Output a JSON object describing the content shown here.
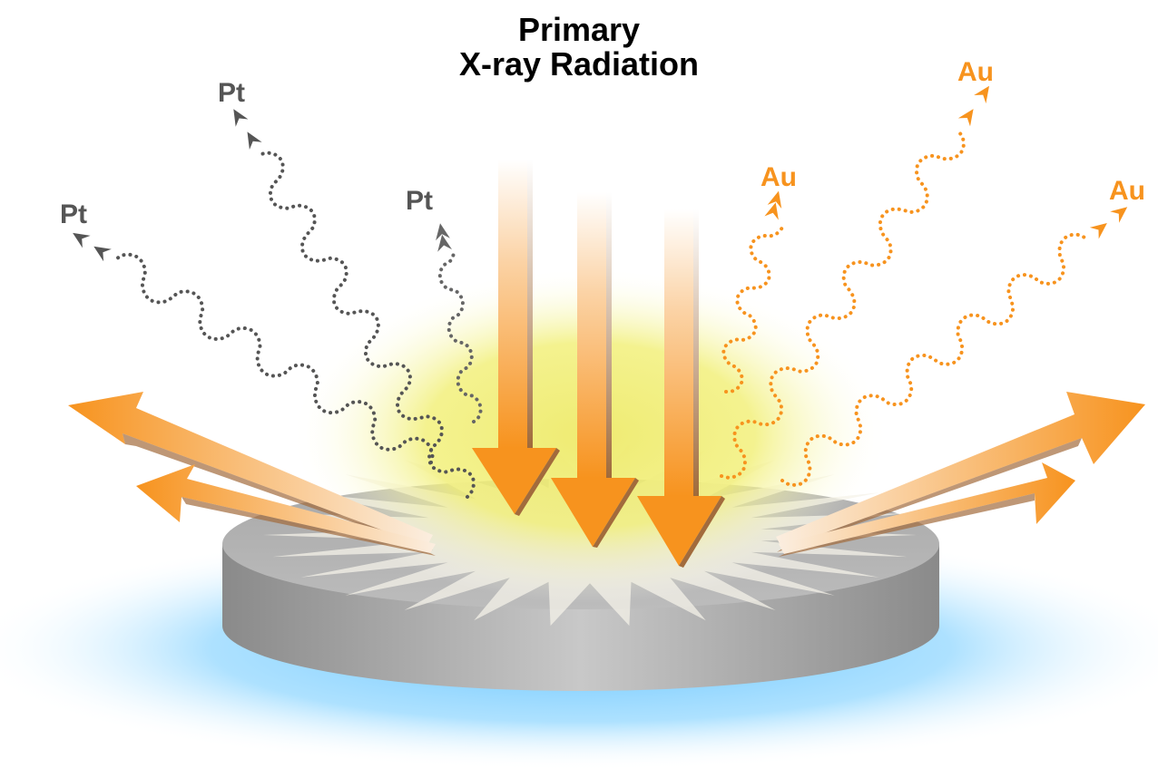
{
  "title": {
    "line1": "Primary",
    "line2": "X-ray Radiation"
  },
  "emission_labels": {
    "pt_left": "Pt",
    "pt_upper": "Pt",
    "pt_center": "Pt",
    "au_center": "Au",
    "au_upper": "Au",
    "au_right": "Au"
  },
  "colors": {
    "primary_arrow": "#f7931e",
    "pt_wave": "#555555",
    "au_wave": "#f7931e",
    "glow": "#f3f07a",
    "base_glow": "#8fd3ff",
    "sample_disc": "#9a9a9a"
  }
}
